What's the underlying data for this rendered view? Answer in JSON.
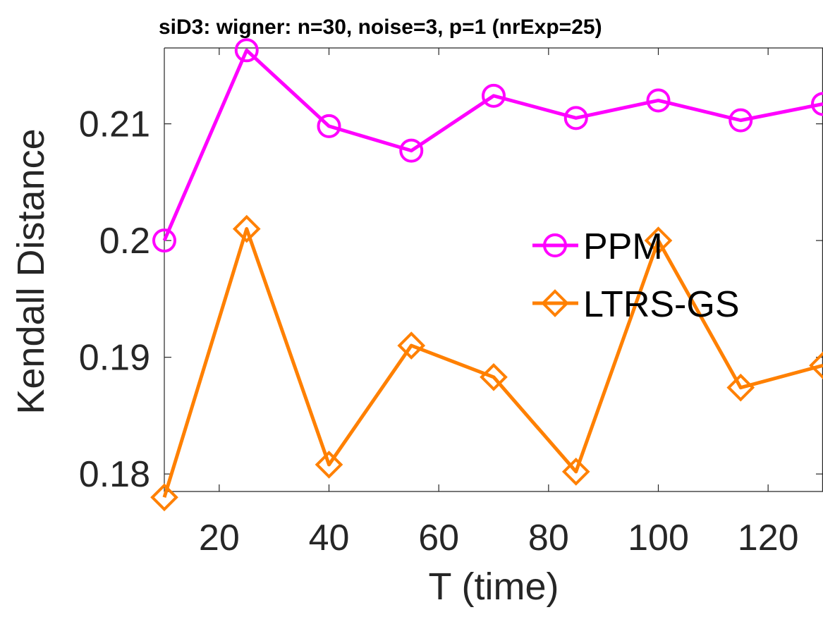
{
  "chart_data": {
    "type": "line",
    "title": "siD3: wigner: n=30, noise=3, p=1 (nrExp=25)",
    "xlabel": "T (time)",
    "ylabel": "Kendall Distance",
    "x": [
      10,
      25,
      40,
      55,
      70,
      85,
      100,
      115,
      130
    ],
    "xlim": [
      10,
      130
    ],
    "ylim": [
      0.1785,
      0.2165
    ],
    "xticks": [
      20,
      40,
      60,
      80,
      100,
      120
    ],
    "xtick_labels": [
      "20",
      "40",
      "60",
      "80",
      "100",
      "120"
    ],
    "yticks": [
      0.18,
      0.19,
      0.2,
      0.21
    ],
    "ytick_labels": [
      "0.18",
      "0.19",
      "0.2",
      "0.21"
    ],
    "grid": false,
    "legend_position": "center-right",
    "series": [
      {
        "name": "PPM",
        "color": "#ff00ff",
        "marker": "circle",
        "values": [
          0.2,
          0.2163,
          0.2098,
          0.2077,
          0.2124,
          0.2105,
          0.212,
          0.2103,
          0.2117
        ]
      },
      {
        "name": "LTRS-GS",
        "color": "#ff8000",
        "marker": "diamond",
        "values": [
          0.178,
          0.201,
          0.1808,
          0.191,
          0.1883,
          0.1802,
          0.2,
          0.1874,
          0.1893
        ]
      }
    ]
  }
}
